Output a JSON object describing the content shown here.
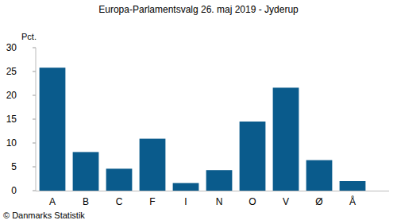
{
  "chart_data": {
    "type": "bar",
    "title": "Europa-Parlamentsvalg 26. maj 2019 - Jyderup",
    "y_label": "Pct.",
    "categories": [
      "A",
      "B",
      "C",
      "F",
      "I",
      "N",
      "O",
      "V",
      "Ø",
      "Å"
    ],
    "values": [
      25.8,
      8.1,
      4.6,
      10.9,
      1.6,
      4.3,
      14.5,
      21.6,
      6.4,
      2.0
    ],
    "color": "#0a5b8c",
    "ylim": [
      0,
      30
    ],
    "yticks": [
      0,
      5,
      10,
      15,
      20,
      25,
      30
    ],
    "grid": false,
    "source": "© Danmarks Statistik"
  }
}
